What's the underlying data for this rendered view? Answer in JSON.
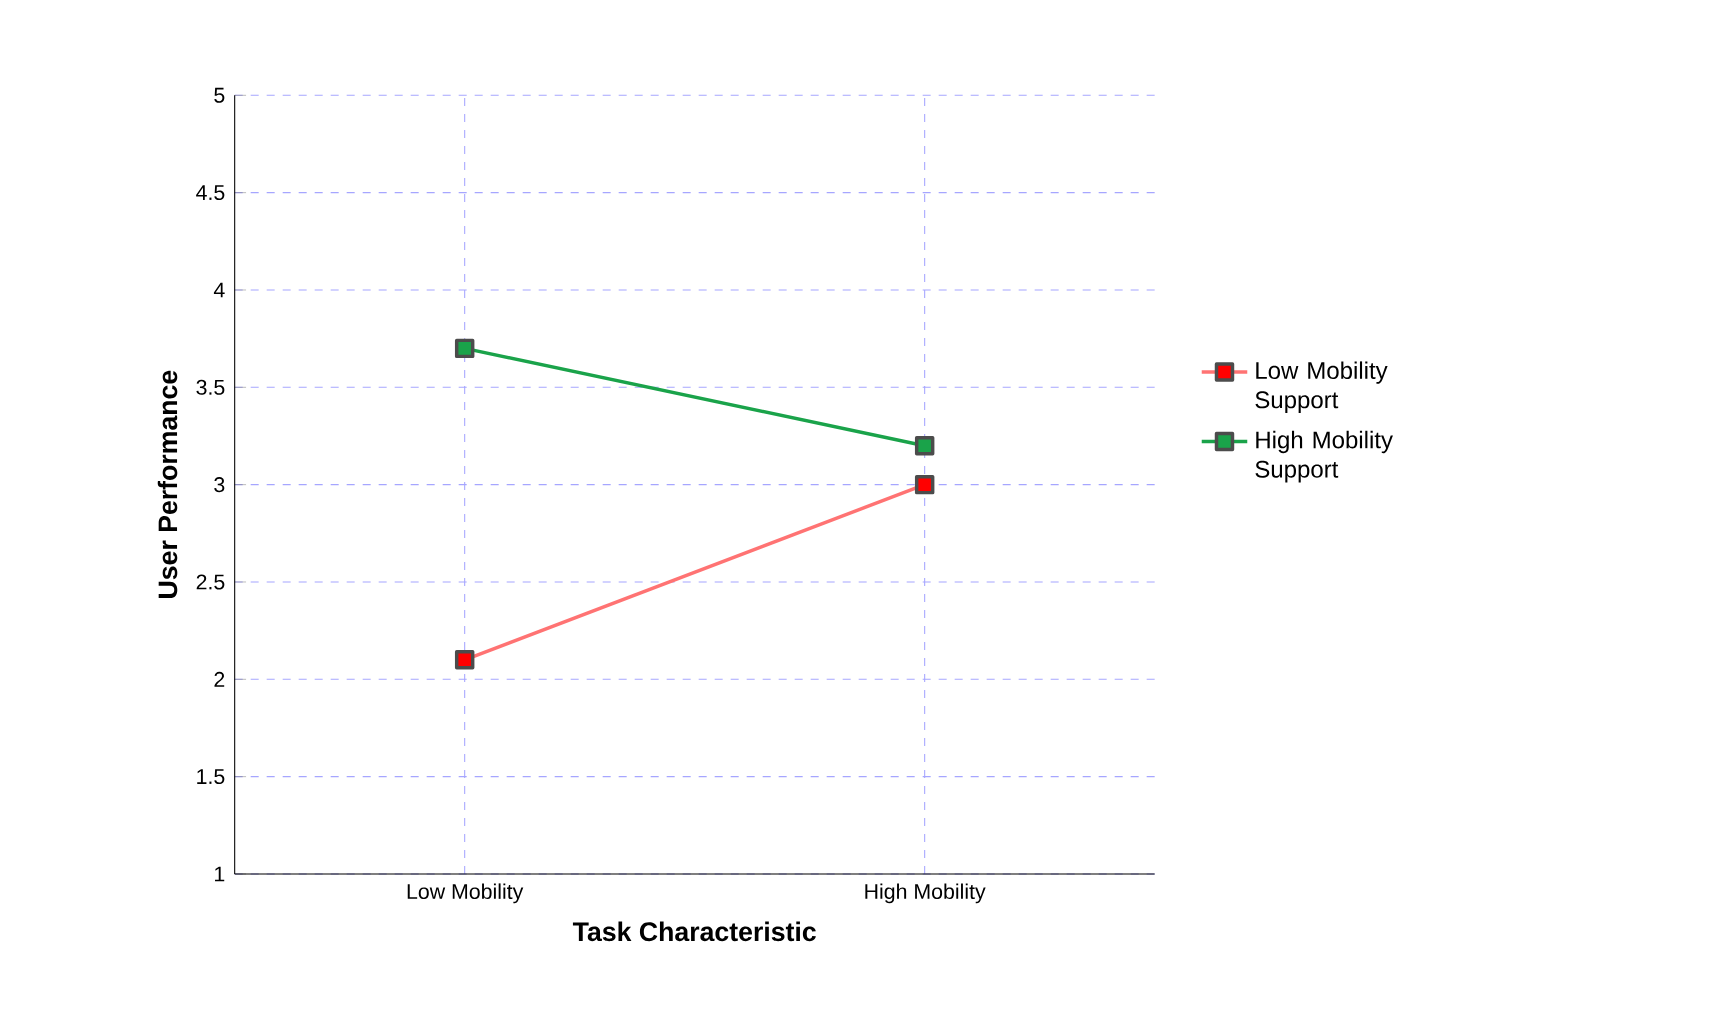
{
  "chart_data": {
    "type": "line",
    "xlabel": "Task Characteristic",
    "ylabel": "User Performance",
    "categories": [
      "Low Mobility",
      "High Mobility"
    ],
    "series": [
      {
        "name": "Low Mobility Support",
        "color": "#ff0000",
        "values": [
          2.1,
          3.0
        ]
      },
      {
        "name": "High Mobility Support",
        "color": "#1aa34a",
        "values": [
          3.7,
          3.2
        ]
      }
    ],
    "ylim": [
      1,
      5
    ],
    "yticks": [
      1,
      1.5,
      2,
      2.5,
      3,
      3.5,
      4,
      4.5,
      5
    ],
    "grid": true,
    "legend": "right",
    "marker": "square",
    "line_style": "solid"
  }
}
